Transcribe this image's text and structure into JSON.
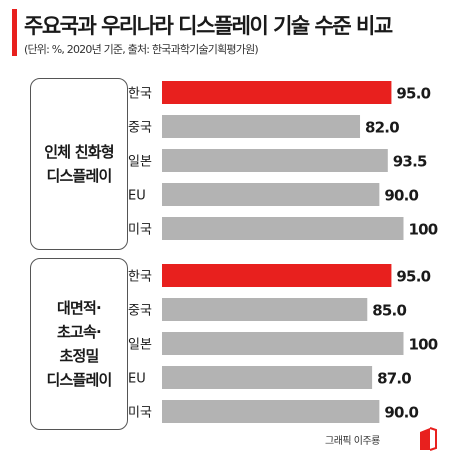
{
  "header": {
    "title": "주요국과 우리나라 디스플레이 기술 수준 비교",
    "subtitle": "(단위: %, 2020년 기준, 출처: 한국과학기술기획평가원)"
  },
  "colors": {
    "highlight": "#e8201e",
    "bar": "#b3b3b3",
    "accent": "#e8201e"
  },
  "chart_data": [
    {
      "type": "bar",
      "orientation": "horizontal",
      "group_label": "인체 친화형\n디스플레이",
      "categories": [
        "한국",
        "중국",
        "일본",
        "EU",
        "미국"
      ],
      "values": [
        95.0,
        82.0,
        93.5,
        90.0,
        100
      ],
      "value_labels": [
        "95.0",
        "82.0",
        "93.5",
        "90.0",
        "100"
      ],
      "highlight": "한국"
    },
    {
      "type": "bar",
      "orientation": "horizontal",
      "group_label": "대면적·\n초고속·\n초정밀\n디스플레이",
      "categories": [
        "한국",
        "중국",
        "일본",
        "EU",
        "미국"
      ],
      "values": [
        95.0,
        85.0,
        100,
        87.0,
        90.0
      ],
      "value_labels": [
        "95.0",
        "85.0",
        "100",
        "87.0",
        "90.0"
      ],
      "highlight": "한국"
    }
  ],
  "footer": {
    "credit": "그래픽 이주룡"
  }
}
